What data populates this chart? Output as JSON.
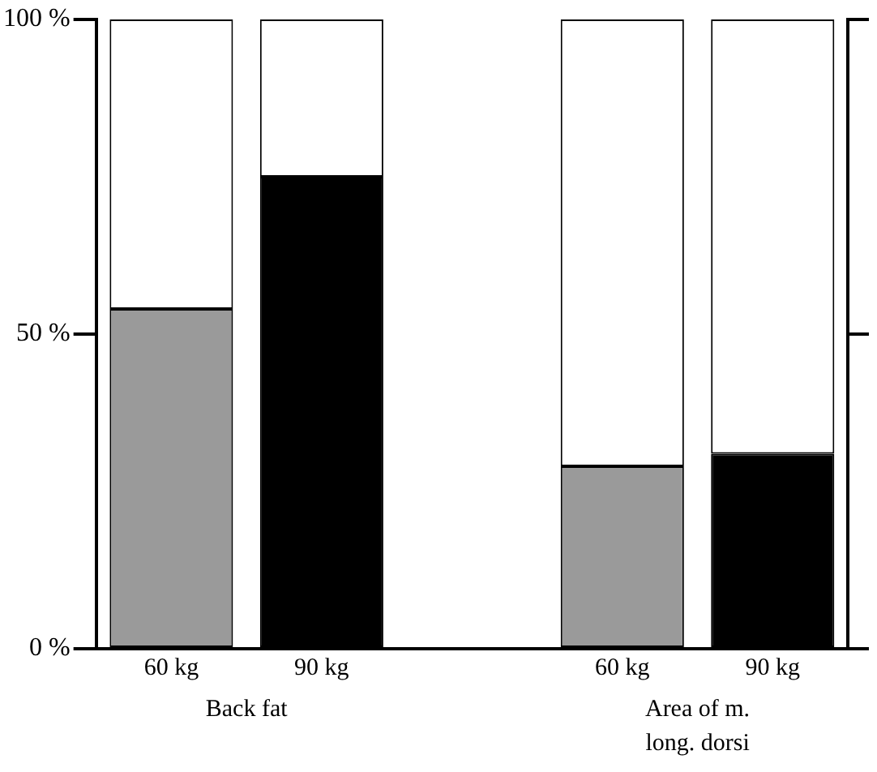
{
  "chart_data": {
    "type": "bar",
    "stacked": true,
    "categories": [
      "60 kg",
      "90 kg",
      null,
      "60 kg",
      "90 kg"
    ],
    "series": [
      {
        "colors": [
          "#9a9a9a",
          "#000000",
          "#9a9a9a",
          "#9a9a9a",
          "#000000"
        ],
        "values": [
          54,
          75,
          null,
          29,
          31
        ]
      },
      {
        "color": "#ffffff",
        "values": [
          46,
          25,
          null,
          71,
          69
        ]
      }
    ],
    "ylim": [
      0,
      100
    ],
    "yticks": [
      {
        "value": 0,
        "label": "0 %"
      },
      {
        "value": 50,
        "label": "50 %"
      },
      {
        "value": 100,
        "label": "100 %"
      }
    ],
    "annotations": [
      "Back fat",
      "Area of m. long. dorsi"
    ],
    "grid": false,
    "legend": false
  }
}
